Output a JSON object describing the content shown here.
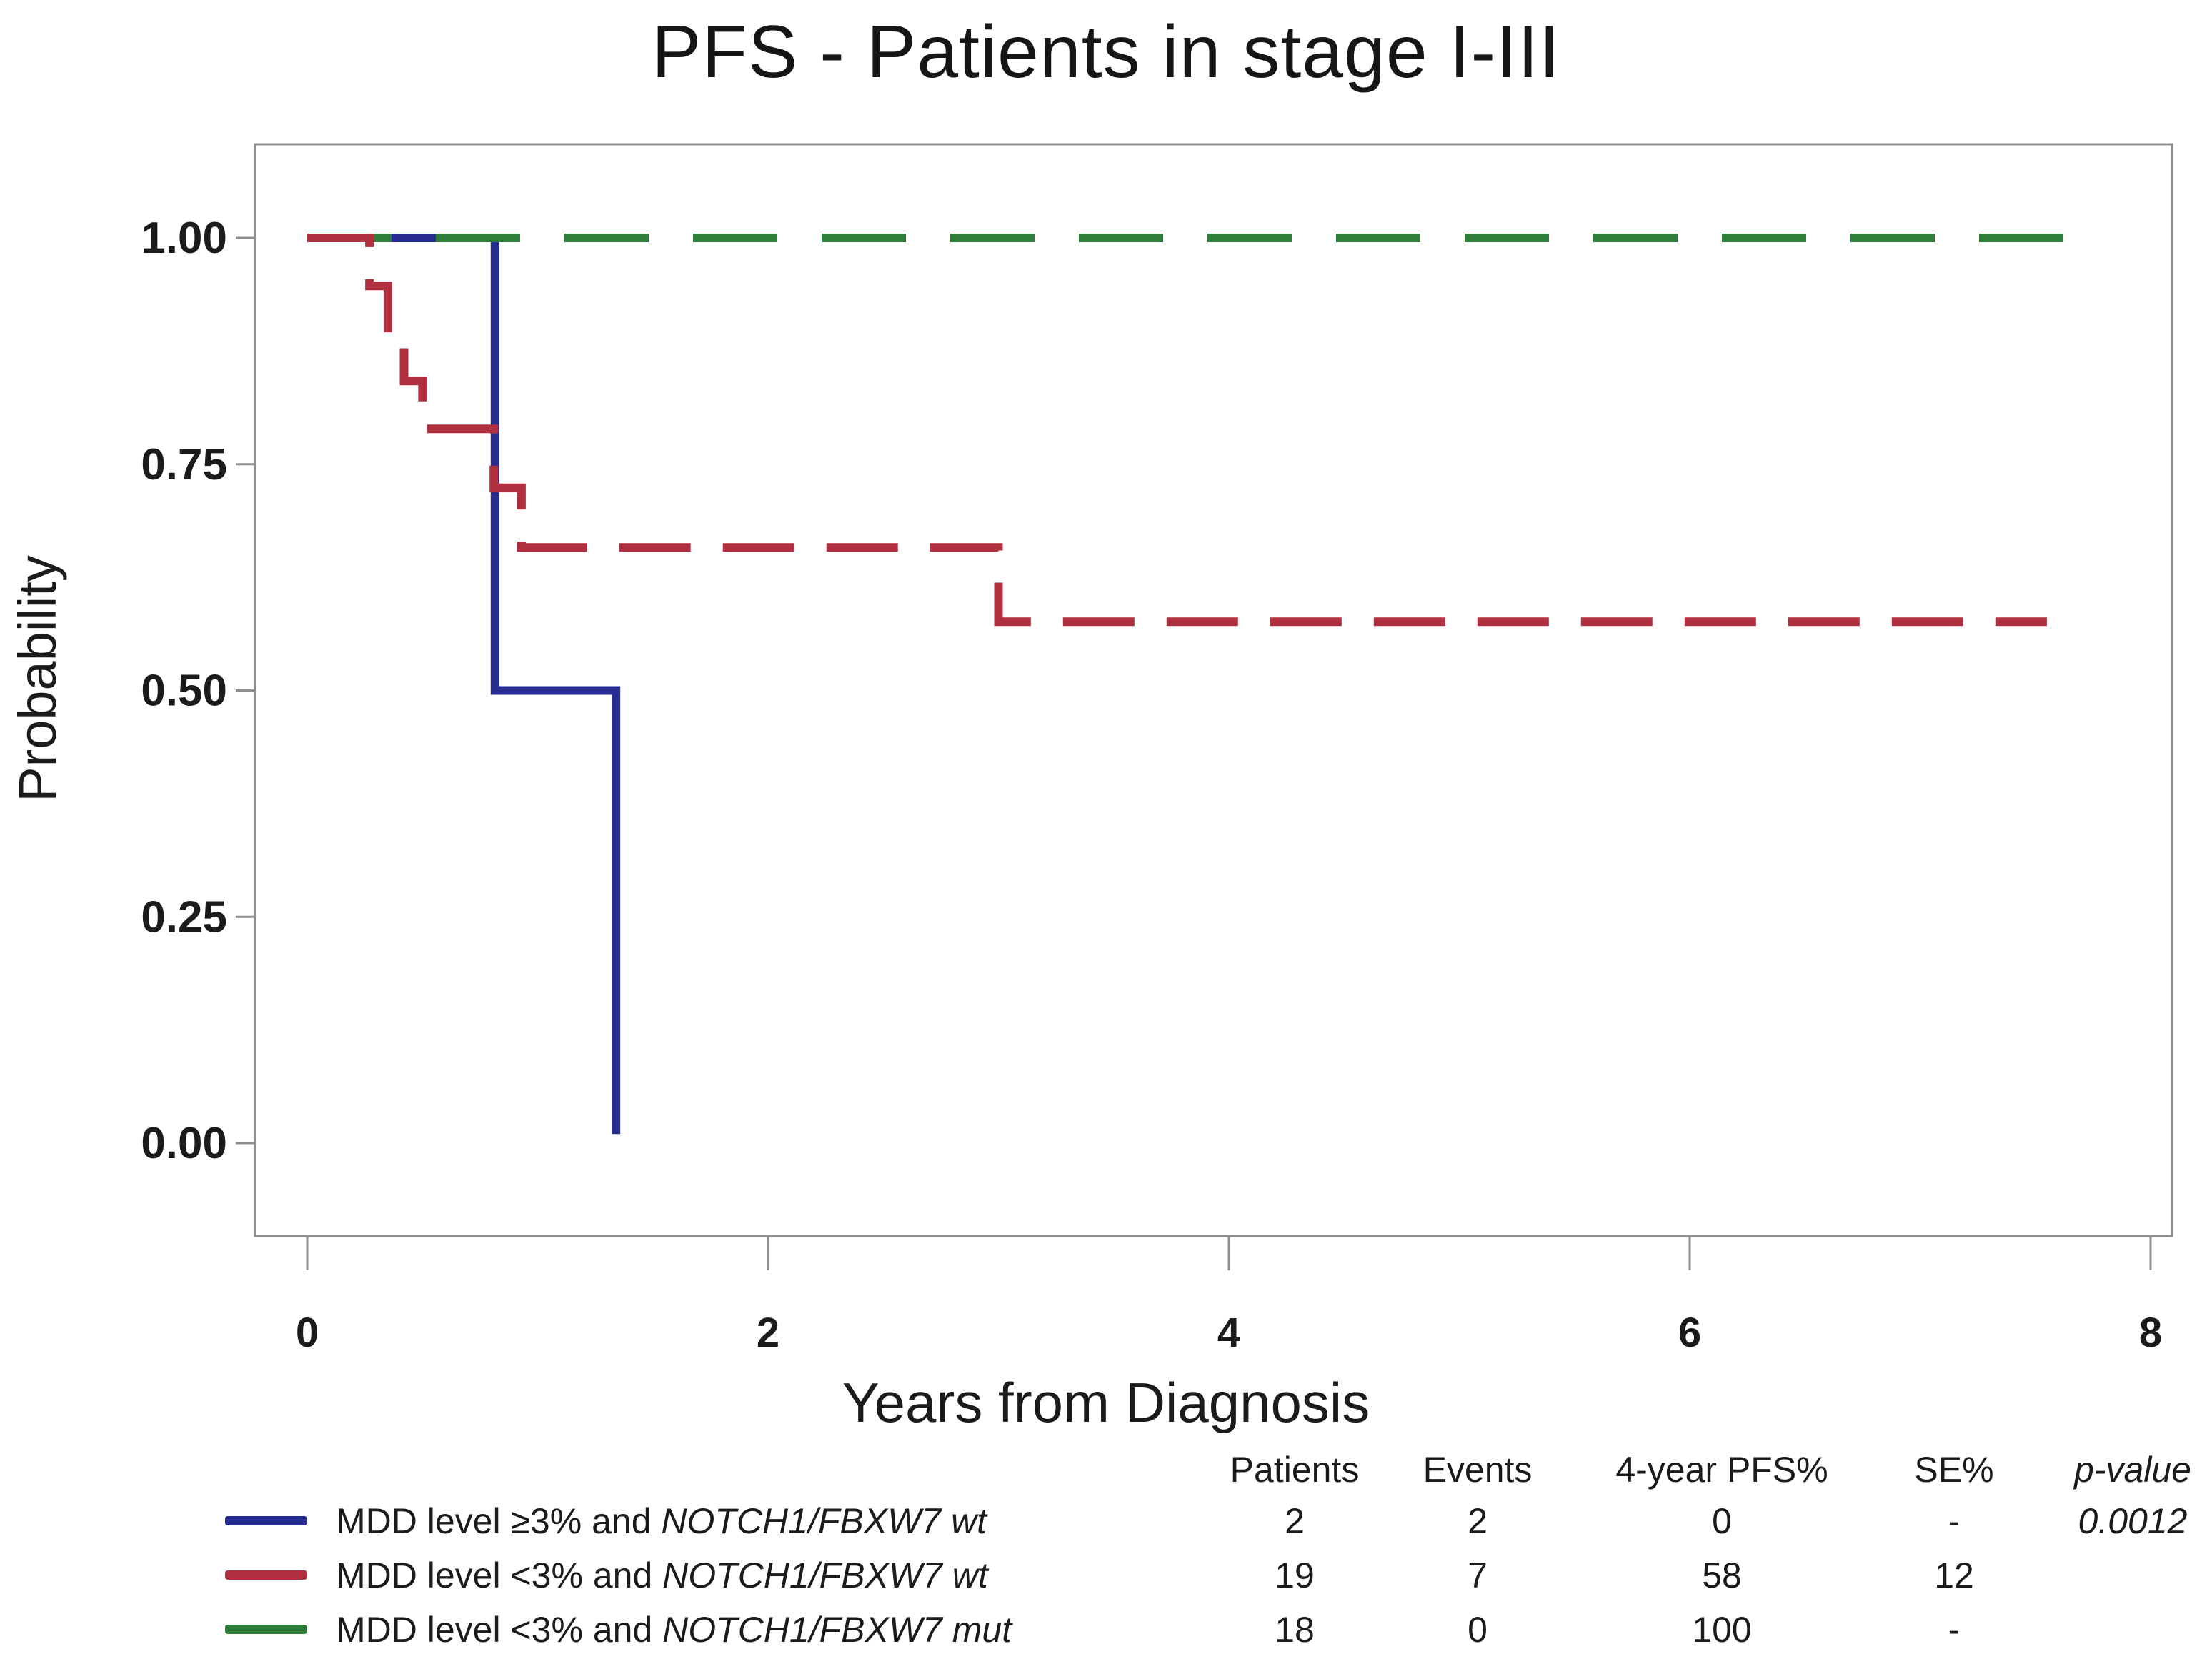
{
  "title": "PFS - Patients in stage I-III",
  "axes": {
    "x_label": "Years from Diagnosis",
    "y_label": "Probability",
    "x_ticks": [
      "0",
      "2",
      "4",
      "6",
      "8"
    ],
    "y_ticks": [
      "1.00",
      "0.75",
      "0.50",
      "0.25",
      "0.00"
    ]
  },
  "chart_data": {
    "type": "line",
    "subtype": "kaplan-meier-step",
    "title": "PFS - Patients in stage I-III",
    "xlabel": "Years from Diagnosis",
    "ylabel": "Probability",
    "xlim": [
      0,
      8
    ],
    "ylim": [
      0,
      1
    ],
    "grid": false,
    "legend_position": "bottom-left",
    "series": [
      {
        "name": "MDD level ≥3% and NOTCH1/FBXW7 wt",
        "color": "#262c90",
        "line_style": "solid",
        "points": [
          [
            0,
            1
          ],
          [
            0.815,
            1
          ],
          [
            0.815,
            0.5
          ],
          [
            1.34,
            0.5
          ],
          [
            1.34,
            0.01
          ]
        ]
      },
      {
        "name": "MDD level <3% and NOTCH1/FBXW7 mut",
        "color": "#2f7d3a",
        "line_style": "long-dash",
        "points": [
          [
            0,
            1
          ],
          [
            7.8,
            1
          ]
        ]
      },
      {
        "name": "MDD level <3% and NOTCH1/FBXW7 wt",
        "color": "#b13040",
        "line_style": "dashed",
        "points": [
          [
            0,
            1
          ],
          [
            0.27,
            1
          ],
          [
            0.27,
            0.947
          ],
          [
            0.35,
            0.947
          ],
          [
            0.35,
            0.895
          ],
          [
            0.42,
            0.895
          ],
          [
            0.42,
            0.842
          ],
          [
            0.5,
            0.842
          ],
          [
            0.5,
            0.789
          ],
          [
            0.81,
            0.789
          ],
          [
            0.81,
            0.724
          ],
          [
            0.93,
            0.724
          ],
          [
            0.93,
            0.658
          ],
          [
            3.0,
            0.658
          ],
          [
            3.0,
            0.576
          ],
          [
            7.55,
            0.576
          ]
        ]
      }
    ]
  },
  "summary_table": {
    "headers": [
      "Patients",
      "Events",
      "4-year PFS%",
      "SE%",
      "p-value"
    ],
    "rows": [
      {
        "label_prefix": "MDD level ≥3% and ",
        "label_italic": "NOTCH1/FBXW7 wt",
        "color": "#262c90",
        "patients": "2",
        "events": "2",
        "pfs": "0",
        "se": "-",
        "p": "0.0012"
      },
      {
        "label_prefix": "MDD level <3% and ",
        "label_italic": "NOTCH1/FBXW7 wt",
        "color": "#b13040",
        "patients": "19",
        "events": "7",
        "pfs": "58",
        "se": "12",
        "p": ""
      },
      {
        "label_prefix": "MDD level <3% and ",
        "label_italic": "NOTCH1/FBXW7 mut",
        "color": "#2f7d3a",
        "patients": "18",
        "events": "0",
        "pfs": "100",
        "se": "-",
        "p": ""
      }
    ]
  }
}
